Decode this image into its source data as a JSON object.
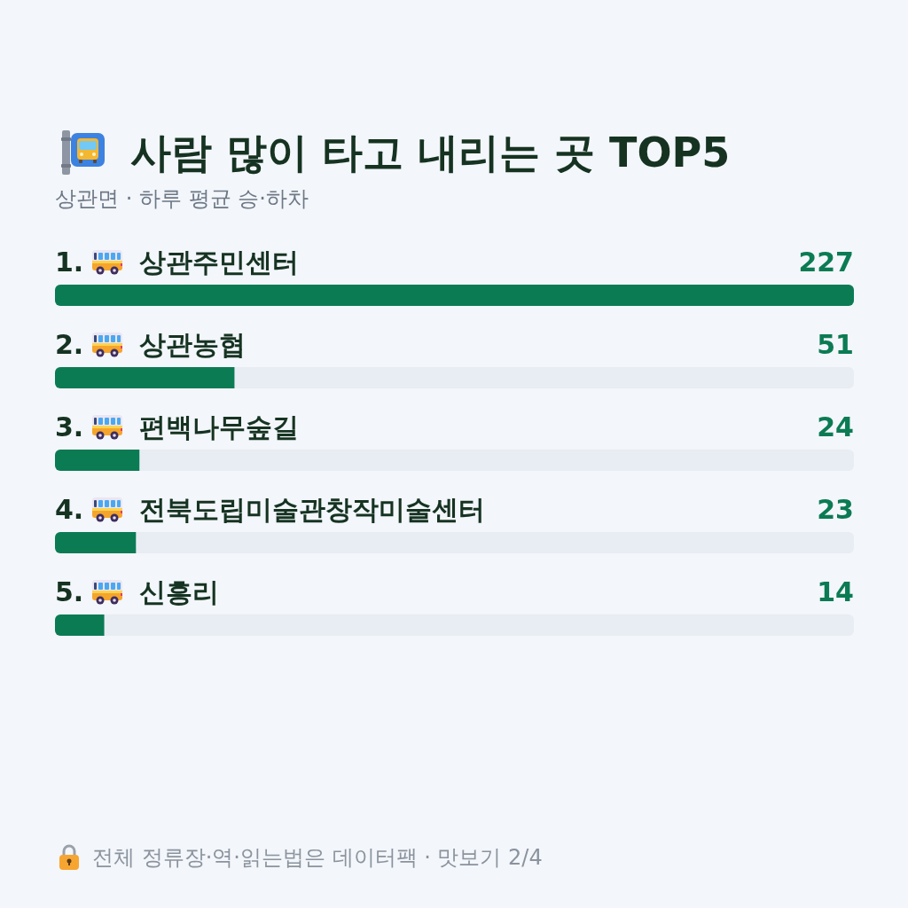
{
  "chart_data": {
    "type": "bar",
    "orientation": "horizontal",
    "title": "사람 많이 타고 내리는 곳 TOP5",
    "subtitle": "상관면 · 하루 평균 승·하차",
    "categories": [
      "1. 상관주민센터",
      "2. 상관농협",
      "3. 편백나무숲길",
      "4. 전북도립미술관창작미술센터",
      "5. 신흥리"
    ],
    "values": [
      227,
      51,
      24,
      23,
      14
    ],
    "color": "#0b7b53",
    "data_labels": true,
    "annotations": [
      "전체 정류장·역·읽는법은 데이터팩 · 맛보기 2/4"
    ]
  }
}
